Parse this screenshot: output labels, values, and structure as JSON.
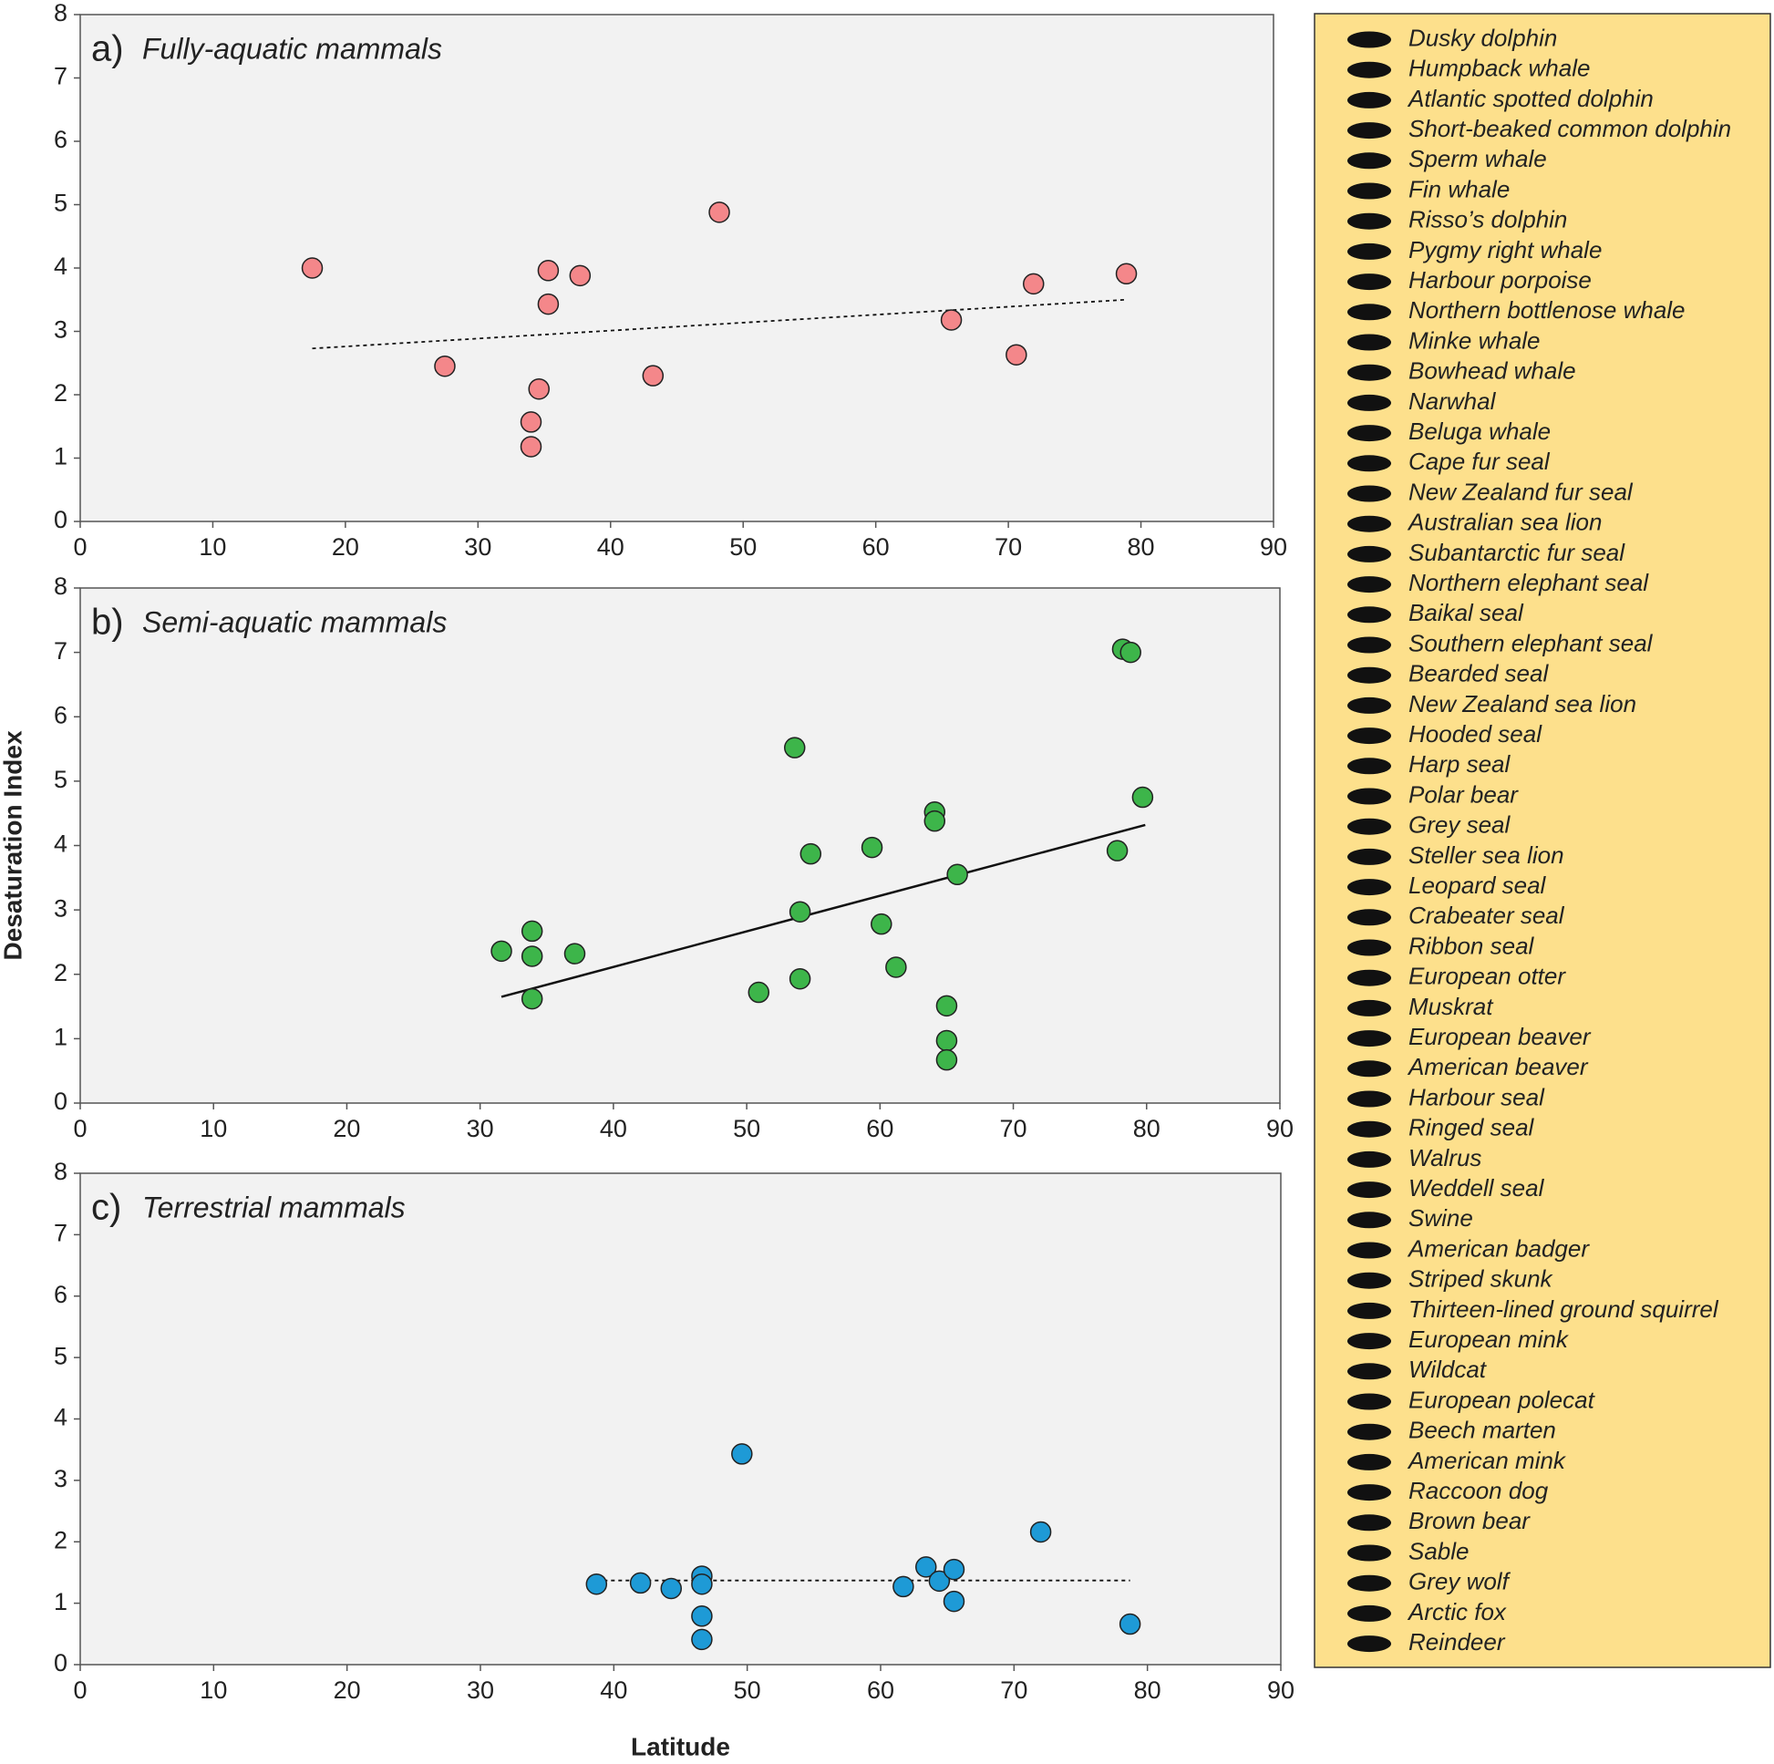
{
  "chart_data": [
    {
      "type": "scatter",
      "label": "a)",
      "title": "Fully-aquatic mammals",
      "color": "#f4878a",
      "x": [
        17.5,
        27.5,
        35.3,
        35.3,
        37.7,
        48.2,
        34.6,
        34.0,
        34.0,
        43.2,
        65.7,
        70.6,
        71.9,
        78.9
      ],
      "values": [
        4.0,
        2.45,
        3.96,
        3.43,
        3.88,
        4.88,
        2.09,
        1.57,
        1.18,
        2.3,
        3.18,
        2.63,
        3.75,
        3.91
      ],
      "trend": {
        "style": "dashed",
        "x": [
          17.5,
          78.9
        ],
        "y": [
          2.73,
          3.5
        ]
      },
      "xlim": [
        0,
        90
      ],
      "xticks": [
        0,
        10,
        20,
        30,
        40,
        50,
        60,
        70,
        80,
        90
      ],
      "ylim": [
        0,
        8
      ],
      "yticks": [
        0,
        1,
        2,
        3,
        4,
        5,
        6,
        7,
        8
      ]
    },
    {
      "type": "scatter",
      "label": "b)",
      "title": "Semi-aquatic mammals",
      "color": "#3db54a",
      "ylabel": "Desaturation Index",
      "x": [
        31.6,
        33.9,
        33.9,
        33.9,
        37.1,
        50.9,
        53.6,
        54.0,
        54.0,
        54.8,
        59.4,
        60.1,
        61.2,
        64.1,
        64.1,
        65.8,
        65.0,
        65.0,
        65.0,
        78.2,
        78.8,
        79.7,
        77.8
      ],
      "values": [
        2.36,
        2.67,
        2.28,
        1.62,
        2.32,
        1.72,
        5.52,
        2.97,
        1.93,
        3.87,
        3.97,
        2.78,
        2.11,
        4.52,
        4.38,
        3.55,
        1.51,
        0.97,
        0.67,
        7.05,
        7.0,
        4.75,
        3.92
      ],
      "trend": {
        "style": "solid",
        "x": [
          31.6,
          79.9
        ],
        "y": [
          1.65,
          4.32
        ]
      },
      "xlim": [
        0,
        90
      ],
      "xticks": [
        0,
        10,
        20,
        30,
        40,
        50,
        60,
        70,
        80,
        90
      ],
      "ylim": [
        0,
        8
      ],
      "yticks": [
        0,
        1,
        2,
        3,
        4,
        5,
        6,
        7,
        8
      ]
    },
    {
      "type": "scatter",
      "label": "c)",
      "title": "Terrestrial mammals",
      "color": "#1e9ad6",
      "xlabel": "Latitude",
      "x": [
        38.7,
        42.0,
        44.3,
        46.6,
        46.6,
        46.6,
        46.6,
        49.6,
        61.7,
        63.4,
        64.4,
        65.5,
        65.5,
        72.0,
        78.7
      ],
      "values": [
        1.31,
        1.33,
        1.24,
        1.44,
        1.31,
        0.79,
        0.41,
        3.43,
        1.27,
        1.59,
        1.36,
        1.55,
        1.03,
        2.16,
        0.66
      ],
      "trend": {
        "style": "dashed",
        "x": [
          38.7,
          78.7
        ],
        "y": [
          1.37,
          1.37
        ]
      },
      "xlim": [
        0,
        90
      ],
      "xticks": [
        0,
        10,
        20,
        30,
        40,
        50,
        60,
        70,
        80,
        90
      ],
      "ylim": [
        0,
        8
      ],
      "yticks": [
        0,
        1,
        2,
        3,
        4,
        5,
        6,
        7,
        8
      ]
    }
  ],
  "legend": {
    "items": [
      "Dusky dolphin",
      "Humpback whale",
      "Atlantic spotted dolphin",
      "Short-beaked common dolphin",
      "Sperm whale",
      "Fin whale",
      "Risso’s dolphin",
      "Pygmy right whale",
      "Harbour porpoise",
      "Northern bottlenose whale",
      "Minke whale",
      "Bowhead whale",
      "Narwhal",
      "Beluga whale",
      "Cape fur seal",
      "New Zealand fur seal",
      "Australian sea lion",
      "Subantarctic fur seal",
      "Northern elephant seal",
      "Baikal seal",
      "Southern elephant seal",
      "Bearded seal",
      "New Zealand sea lion",
      "Hooded seal",
      "Harp seal",
      "Polar bear",
      "Grey seal",
      "Steller sea lion",
      "Leopard seal",
      "Crabeater seal",
      "Ribbon seal",
      "European otter",
      "Muskrat",
      "European beaver",
      "American beaver",
      "Harbour seal",
      "Ringed seal",
      "Walrus",
      "Weddell seal",
      "Swine",
      "American badger",
      "Striped skunk",
      "Thirteen-lined ground squirrel",
      "European mink",
      "Wildcat",
      "European polecat",
      "Beech marten",
      "American mink",
      "Raccoon dog",
      "Brown bear",
      "Sable",
      "Grey wolf",
      "Arctic fox",
      "Reindeer"
    ]
  }
}
